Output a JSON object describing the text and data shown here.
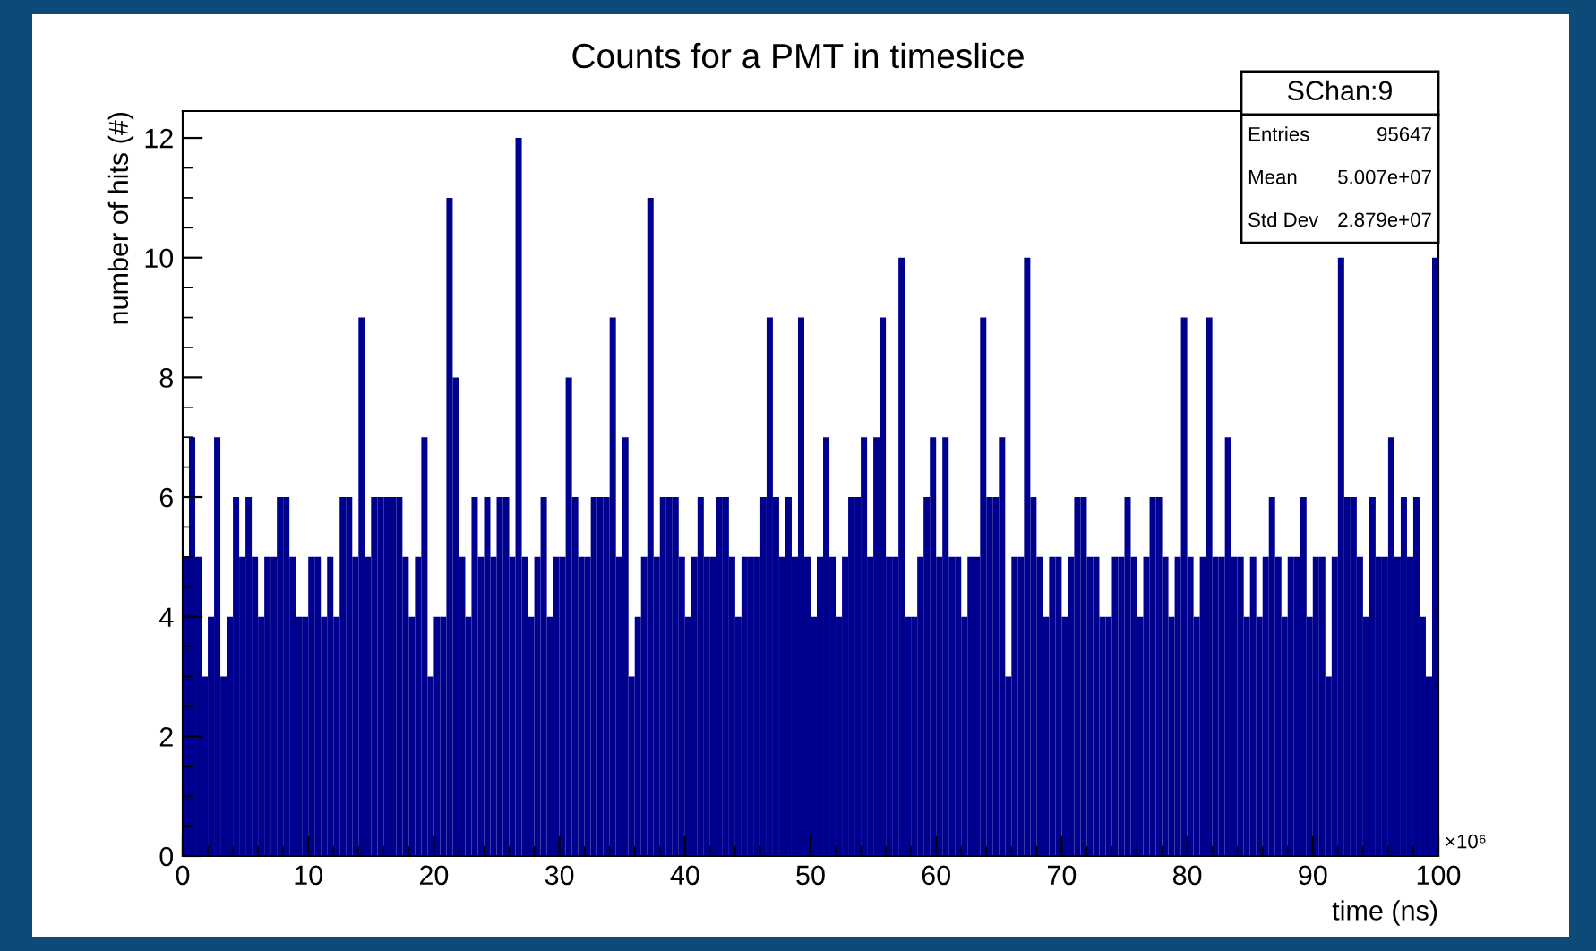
{
  "chart_data": {
    "type": "histogram",
    "title": "Counts for a PMT in timeslice",
    "xlabel": "time (ns)",
    "ylabel": "number of hits (#)",
    "color": "#00008f",
    "bins": [
      0,
      0.5,
      1,
      1.5,
      2,
      2.5,
      3,
      3.5,
      4,
      4.5,
      5,
      5.5,
      6,
      6.5,
      7,
      7.5,
      8,
      8.5,
      9,
      9.5,
      10,
      10.5,
      11,
      11.5,
      12,
      12.5,
      13,
      13.5,
      14,
      14.5,
      15,
      15.5,
      16,
      16.5,
      17,
      17.5,
      18,
      18.5,
      19,
      19.5,
      20,
      20.5,
      21,
      21.5,
      22,
      22.5,
      23,
      23.5,
      24,
      24.5,
      25,
      25.5,
      26,
      26.5,
      27,
      27.5,
      28,
      28.5,
      29,
      29.5,
      30,
      30.5,
      31,
      31.5,
      32,
      32.5,
      33,
      33.5,
      34,
      34.5,
      35,
      35.5,
      36,
      36.5,
      37,
      37.5,
      38,
      38.5,
      39,
      39.5,
      40,
      40.5,
      41,
      41.5,
      42,
      42.5,
      43,
      43.5,
      44,
      44.5,
      45,
      45.5,
      46,
      46.5,
      47,
      47.5,
      48,
      48.5,
      49,
      49.5,
      50,
      50.5,
      51,
      51.5,
      52,
      52.5,
      53,
      53.5,
      54,
      54.5,
      55,
      55.5,
      56,
      56.5,
      57,
      57.5,
      58,
      58.5,
      59,
      59.5,
      60,
      60.5,
      61,
      61.5,
      62,
      62.5,
      63,
      63.5,
      64,
      64.5,
      65,
      65.5,
      66,
      66.5,
      67,
      67.5,
      68,
      68.5,
      69,
      69.5,
      70,
      70.5,
      71,
      71.5,
      72,
      72.5,
      73,
      73.5,
      74,
      74.5,
      75,
      75.5,
      76,
      76.5,
      77,
      77.5,
      78,
      78.5,
      79,
      79.5,
      80,
      80.5,
      81,
      81.5,
      82,
      82.5,
      83,
      83.5,
      84,
      84.5,
      85,
      85.5,
      86,
      86.5,
      87,
      87.5,
      88,
      88.5,
      89,
      89.5,
      90,
      90.5,
      91,
      91.5,
      92,
      92.5,
      93,
      93.5,
      94,
      94.5,
      95,
      95.5,
      96,
      96.5,
      97,
      97.5,
      98,
      98.5,
      99,
      99.5,
      100
    ],
    "values": [
      5,
      7,
      5,
      3,
      4,
      7,
      3,
      4,
      6,
      5,
      6,
      5,
      4,
      5,
      5,
      6,
      6,
      5,
      4,
      4,
      5,
      5,
      4,
      5,
      4,
      6,
      6,
      5,
      9,
      5,
      6,
      6,
      6,
      6,
      6,
      5,
      4,
      5,
      7,
      3,
      4,
      4,
      11,
      8,
      5,
      4,
      6,
      5,
      6,
      5,
      6,
      6,
      5,
      12,
      5,
      4,
      5,
      6,
      4,
      5,
      5,
      8,
      6,
      5,
      5,
      6,
      6,
      6,
      9,
      5,
      7,
      3,
      4,
      5,
      11,
      5,
      6,
      6,
      6,
      5,
      4,
      5,
      6,
      5,
      5,
      6,
      6,
      5,
      4,
      5,
      5,
      5,
      6,
      9,
      6,
      5,
      6,
      5,
      9,
      5,
      4,
      5,
      7,
      5,
      4,
      5,
      6,
      6,
      7,
      5,
      7,
      9,
      5,
      5,
      10,
      4,
      4,
      5,
      6,
      7,
      5,
      7,
      5,
      5,
      4,
      5,
      5,
      9,
      6,
      6,
      7,
      3,
      5,
      5,
      10,
      6,
      5,
      4,
      5,
      5,
      4,
      5,
      6,
      6,
      5,
      5,
      4,
      4,
      5,
      5,
      6,
      5,
      4,
      5,
      6,
      6,
      5,
      4,
      5,
      9,
      5,
      4,
      5,
      9,
      5,
      5,
      7,
      5,
      5,
      4,
      5,
      4,
      5,
      6,
      5,
      4,
      5,
      5,
      6,
      4,
      5,
      5,
      3,
      5,
      10,
      6,
      6,
      5,
      4,
      6,
      5,
      5,
      7,
      5,
      6,
      5,
      6,
      4,
      3,
      10
    ],
    "xlim": [
      0,
      100
    ],
    "xticks": [
      0,
      10,
      20,
      30,
      40,
      50,
      60,
      70,
      80,
      90,
      100
    ],
    "ylim": [
      0,
      12.45
    ],
    "yticks": [
      0,
      2,
      4,
      6,
      8,
      10,
      12
    ],
    "grid": false,
    "annotations": [
      "×10⁶",
      "SChan:9",
      "Entries",
      "95647",
      "Mean",
      "5.007e+07",
      "Std Dev",
      "2.879e+07"
    ]
  }
}
